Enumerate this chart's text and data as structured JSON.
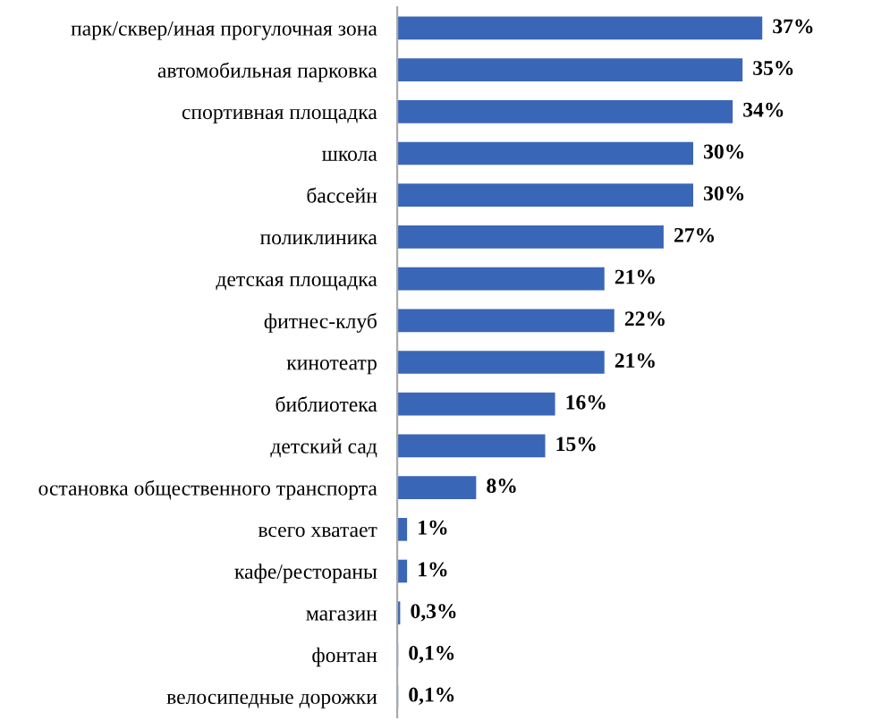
{
  "chart_data": {
    "type": "bar",
    "orientation": "horizontal",
    "categories": [
      "парк/сквер/иная прогулочная зона",
      "автомобильная парковка",
      "спортивная площадка",
      "школа",
      "бассейн",
      "поликлиника",
      "детская площадка",
      "фитнес-клуб",
      "кинотеатр",
      "библиотека",
      "детский сад",
      "остановка общественного транспорта",
      "всего хватает",
      "кафе/рестораны",
      "магазин",
      "фонтан",
      "велосипедные дорожки"
    ],
    "values": [
      37,
      35,
      34,
      30,
      30,
      27,
      21,
      22,
      21,
      16,
      15,
      8,
      1,
      1,
      0.3,
      0.1,
      0.1
    ],
    "value_labels": [
      "37%",
      "35%",
      "34%",
      "30%",
      "30%",
      "27%",
      "21%",
      "22%",
      "21%",
      "16%",
      "15%",
      "8%",
      "1%",
      "1%",
      "0,3%",
      "0,1%",
      "0,1%"
    ],
    "color": "#3a66b8",
    "grid": false,
    "legend": false
  }
}
